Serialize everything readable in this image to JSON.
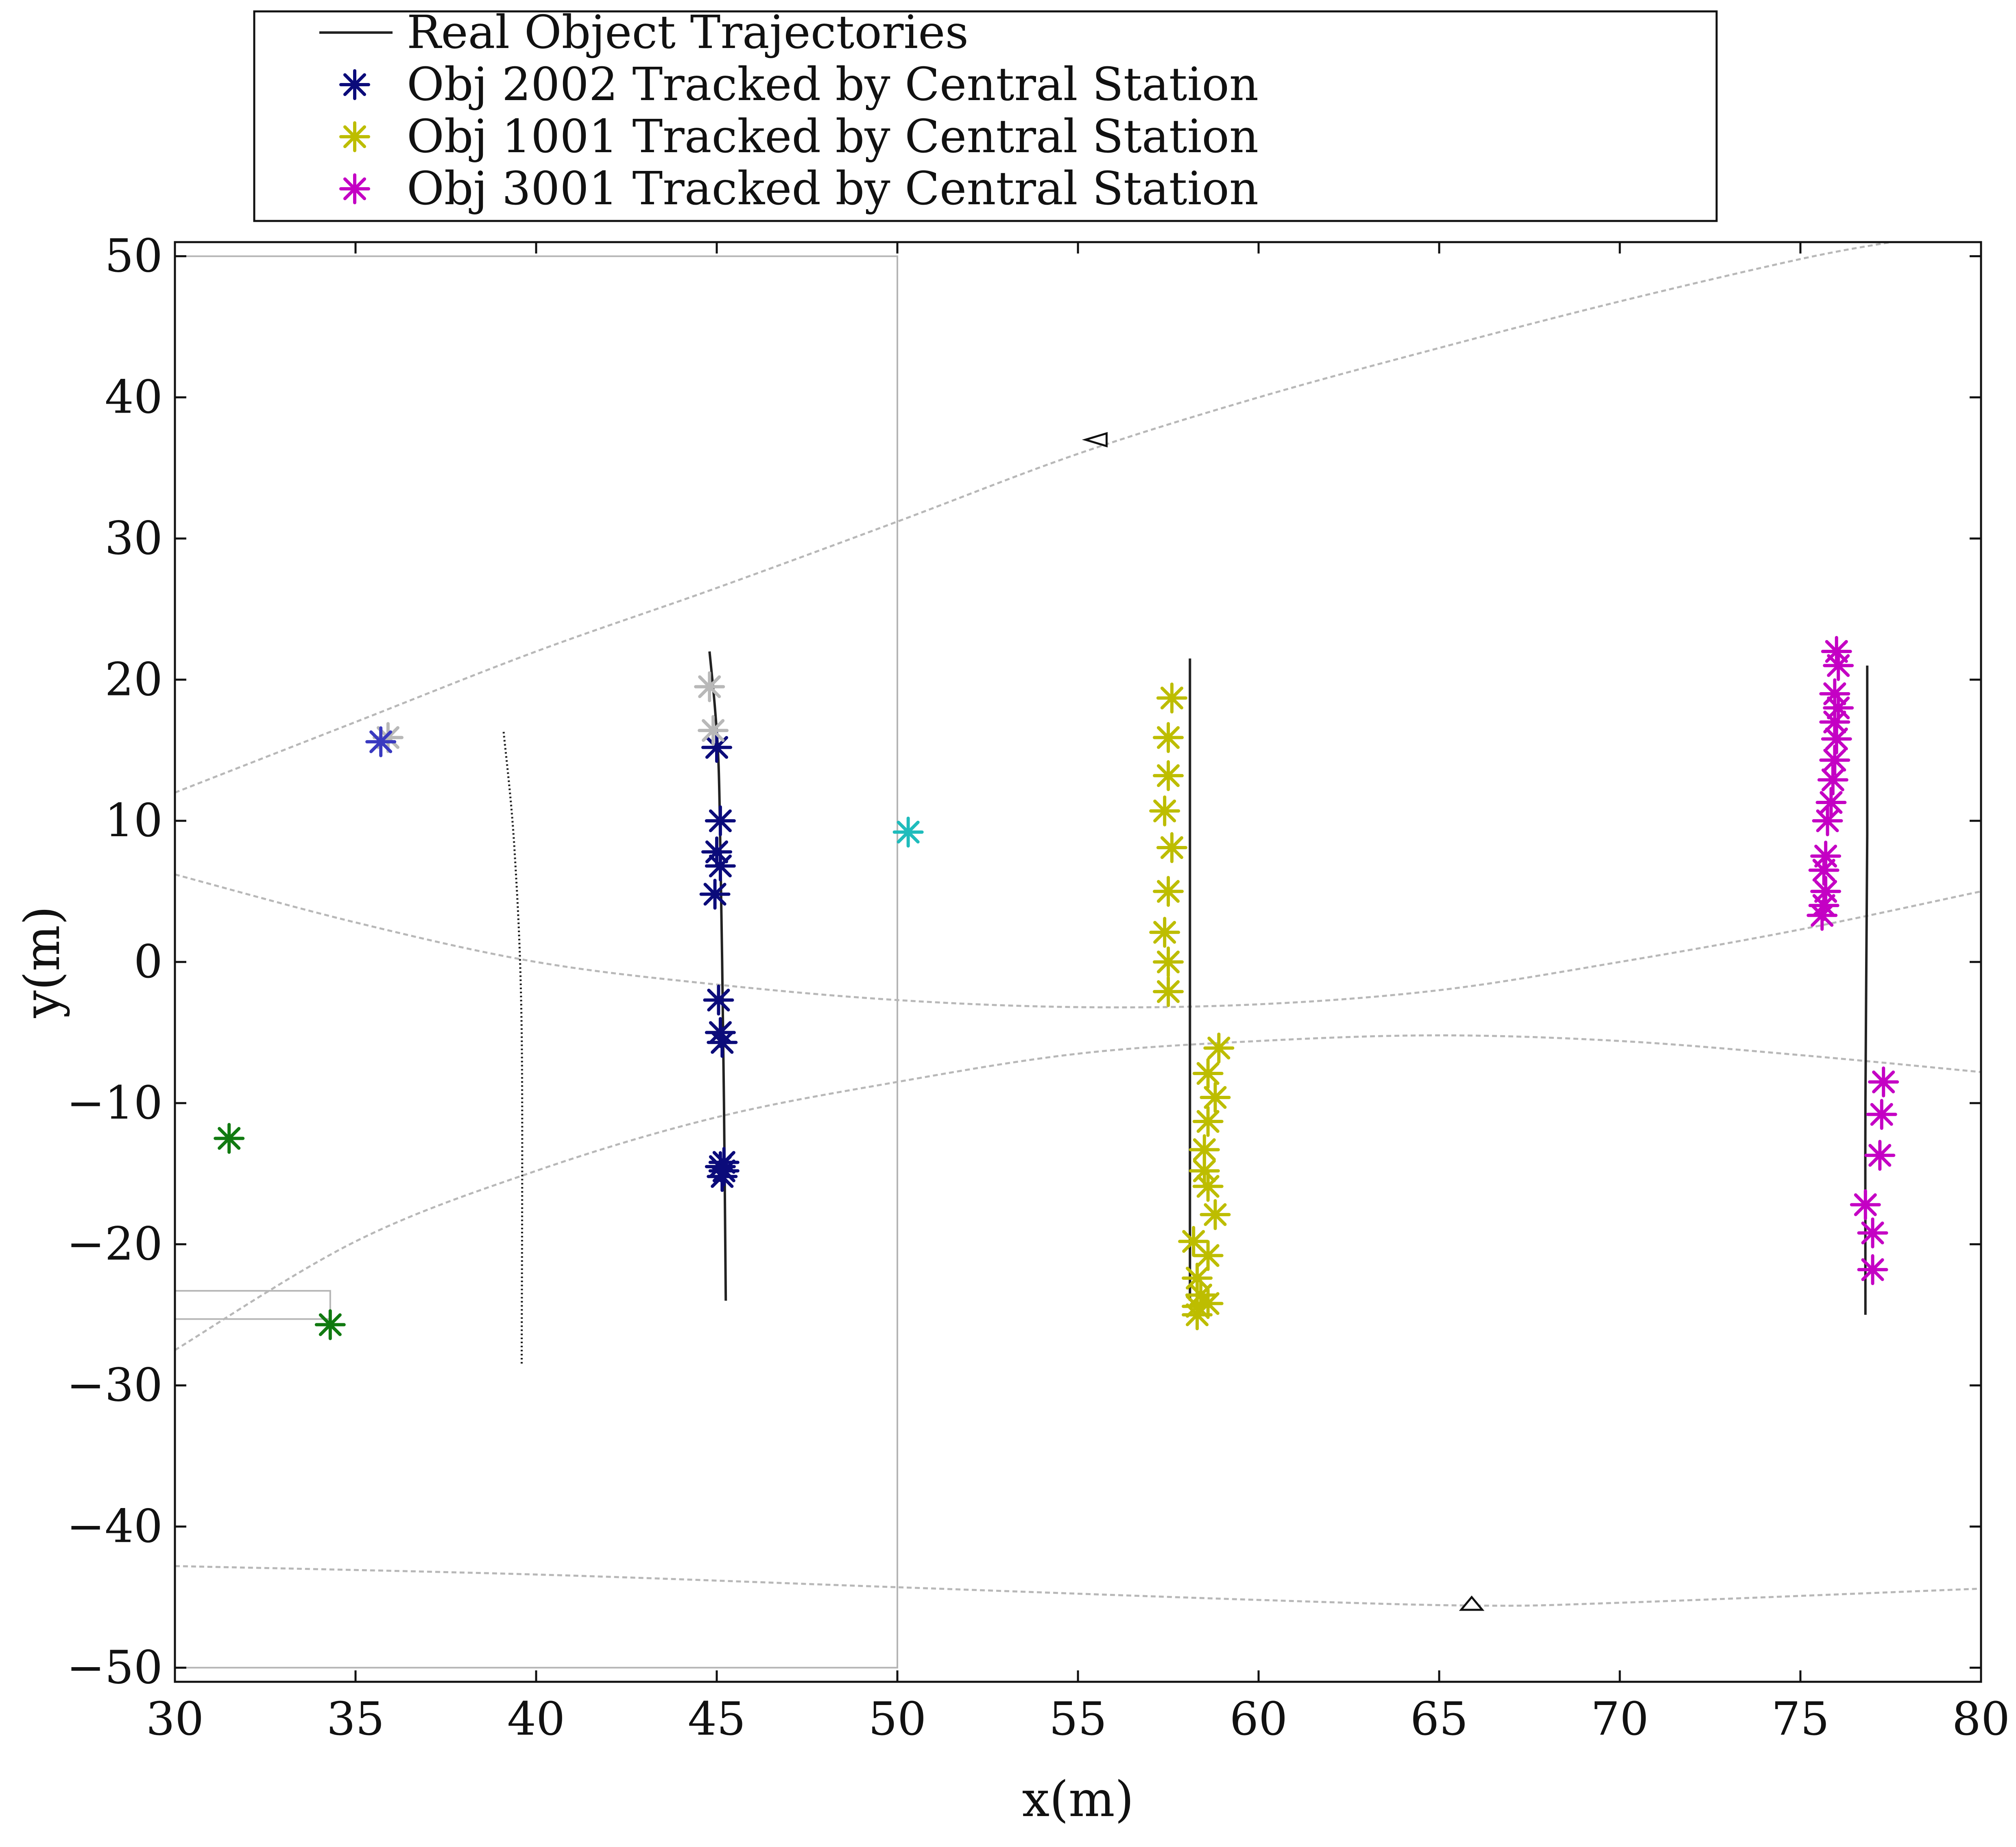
{
  "chart_data": {
    "type": "scatter",
    "title": "",
    "xlabel": "x(m)",
    "ylabel": "y(m)",
    "xlim": [
      30,
      80
    ],
    "ylim": [
      -51,
      51
    ],
    "xticks": [
      30,
      35,
      40,
      45,
      50,
      55,
      60,
      65,
      70,
      75,
      80
    ],
    "yticks": [
      -50,
      -40,
      -30,
      -20,
      -10,
      0,
      10,
      20,
      30,
      40,
      50
    ],
    "ytick_labels": [
      "−50",
      "−40",
      "−30",
      "−20",
      "−10",
      "0",
      "10",
      "20",
      "30",
      "40",
      "50"
    ],
    "grid": false,
    "legend_position": "top-left, above plot",
    "legend": [
      {
        "label": "Real Object Trajectories",
        "marker": "line",
        "color": "#222222"
      },
      {
        "label": "Obj 2002 Tracked by Central Station",
        "marker": "asterisk",
        "color": "#0b0b7a"
      },
      {
        "label": "Obj 1001 Tracked by Central Station",
        "marker": "asterisk",
        "color": "#bdbd00"
      },
      {
        "label": "Obj 3001 Tracked by Central Station",
        "marker": "asterisk",
        "color": "#c400c4"
      }
    ],
    "series": [
      {
        "name": "Obj 2002 Tracked by Central Station",
        "color": "#0b0b7a",
        "x": [
          45.0,
          45.1,
          45.0,
          45.1,
          44.95,
          45.05,
          45.1,
          45.15,
          45.2,
          45.1,
          45.15,
          45.2
        ],
        "y": [
          15.2,
          10.0,
          7.8,
          6.8,
          4.8,
          -2.7,
          -5.0,
          -5.7,
          -14.2,
          -14.5,
          -15.2,
          -14.8
        ]
      },
      {
        "name": "Obj 1001 Tracked by Central Station",
        "color": "#bdbd00",
        "x": [
          57.6,
          57.5,
          57.5,
          57.4,
          57.6,
          57.5,
          57.4,
          57.5,
          57.5,
          58.9,
          58.6,
          58.8,
          58.6,
          58.5,
          58.5,
          58.6,
          58.8,
          58.2,
          58.6,
          58.3,
          58.4,
          58.3,
          58.6,
          58.3
        ],
        "y": [
          18.7,
          15.9,
          13.2,
          10.7,
          8.1,
          5.0,
          2.1,
          0.0,
          -2.1,
          -6.1,
          -7.9,
          -9.6,
          -11.3,
          -13.3,
          -14.8,
          -15.9,
          -17.9,
          -19.8,
          -20.8,
          -22.4,
          -23.6,
          -24.4,
          -24.2,
          -25.0
        ]
      },
      {
        "name": "Obj 3001 Tracked by Central Station",
        "color": "#c400c4",
        "x": [
          76.0,
          76.05,
          75.95,
          76.05,
          75.95,
          76.0,
          75.95,
          75.9,
          75.85,
          75.75,
          75.7,
          75.65,
          75.7,
          75.6,
          75.65,
          77.3,
          77.25,
          77.2,
          76.8,
          77.0,
          77.0
        ],
        "y": [
          22.0,
          21.0,
          19.0,
          18.0,
          17.0,
          15.8,
          14.3,
          12.9,
          11.3,
          10.0,
          7.5,
          6.5,
          5.0,
          3.3,
          4.0,
          -8.5,
          -10.8,
          -13.7,
          -17.2,
          -19.2,
          -21.8
        ]
      },
      {
        "name": "Gray markers",
        "color": "#b8b8b8",
        "x": [
          44.8,
          44.9,
          35.9
        ],
        "y": [
          19.5,
          16.4,
          15.9
        ]
      },
      {
        "name": "Blue marker",
        "color": "#3a3ac0",
        "x": [
          35.7
        ],
        "y": [
          15.6
        ]
      },
      {
        "name": "Cyan marker",
        "color": "#1fbcbc",
        "x": [
          50.3
        ],
        "y": [
          9.2
        ]
      },
      {
        "name": "Green markers",
        "color": "#117a11",
        "x": [
          31.5,
          34.3
        ],
        "y": [
          -12.5,
          -25.7
        ]
      }
    ],
    "trajectories": [
      {
        "name": "traj-obj2002",
        "color": "#222222",
        "style": "solid",
        "x": [
          44.8,
          44.95,
          45.05,
          45.1,
          45.15,
          45.2,
          45.25
        ],
        "y": [
          22.0,
          18.0,
          14.0,
          8.0,
          0.0,
          -10.0,
          -24.0
        ]
      },
      {
        "name": "traj-obj1001",
        "color": "#222222",
        "style": "solid",
        "x": [
          58.1,
          58.1,
          58.1
        ],
        "y": [
          21.5,
          0.0,
          -24.0
        ]
      },
      {
        "name": "traj-obj3001",
        "color": "#222222",
        "style": "solid",
        "x": [
          76.85,
          76.85,
          76.8,
          76.8
        ],
        "y": [
          21.0,
          9.0,
          -10.0,
          -25.0
        ]
      },
      {
        "name": "traj-dotted",
        "color": "#222222",
        "style": "dotted",
        "x": [
          39.1,
          39.4,
          39.6,
          39.6
        ],
        "y": [
          16.3,
          8.0,
          -5.0,
          -28.5
        ]
      }
    ],
    "boundaries": [
      {
        "name": "upper-curve",
        "x": [
          30,
          35,
          40,
          45,
          50,
          55,
          60,
          65,
          70,
          75,
          77.5
        ],
        "y": [
          12,
          17,
          22,
          26.5,
          31.2,
          36,
          40,
          43.5,
          46.8,
          49.8,
          51
        ]
      },
      {
        "name": "middle-curve",
        "x": [
          30,
          35,
          40,
          45,
          50,
          55,
          60,
          65,
          70,
          75,
          80
        ],
        "y": [
          6.2,
          2.8,
          0.0,
          -1.6,
          -2.7,
          -3.2,
          -3.0,
          -2.0,
          0.0,
          2.3,
          5.0
        ]
      },
      {
        "name": "lower-curve",
        "x": [
          30,
          35,
          40,
          45,
          50,
          55,
          60,
          65,
          70,
          75,
          80
        ],
        "y": [
          -27.5,
          -19.8,
          -14.8,
          -11.0,
          -8.5,
          -6.5,
          -5.6,
          -5.2,
          -5.6,
          -6.6,
          -7.8
        ]
      },
      {
        "name": "bottom-curve",
        "x": [
          30,
          40,
          50,
          60,
          66,
          70,
          80
        ],
        "y": [
          -42.8,
          -43.4,
          -44.3,
          -45.2,
          -45.6,
          -45.4,
          -44.4
        ]
      }
    ],
    "regions": [
      {
        "name": "region-rectangle",
        "x": [
          30,
          50
        ],
        "y": [
          -50,
          50
        ]
      },
      {
        "name": "small-rectangle",
        "x": [
          30,
          34.3
        ],
        "y": [
          -25.3,
          -23.3
        ]
      }
    ],
    "sensor_markers": [
      {
        "name": "sensor-top",
        "x": 55.5,
        "y": 37,
        "direction": "left"
      },
      {
        "name": "sensor-bottom",
        "x": 65.9,
        "y": -45.6,
        "direction": "up"
      }
    ]
  }
}
